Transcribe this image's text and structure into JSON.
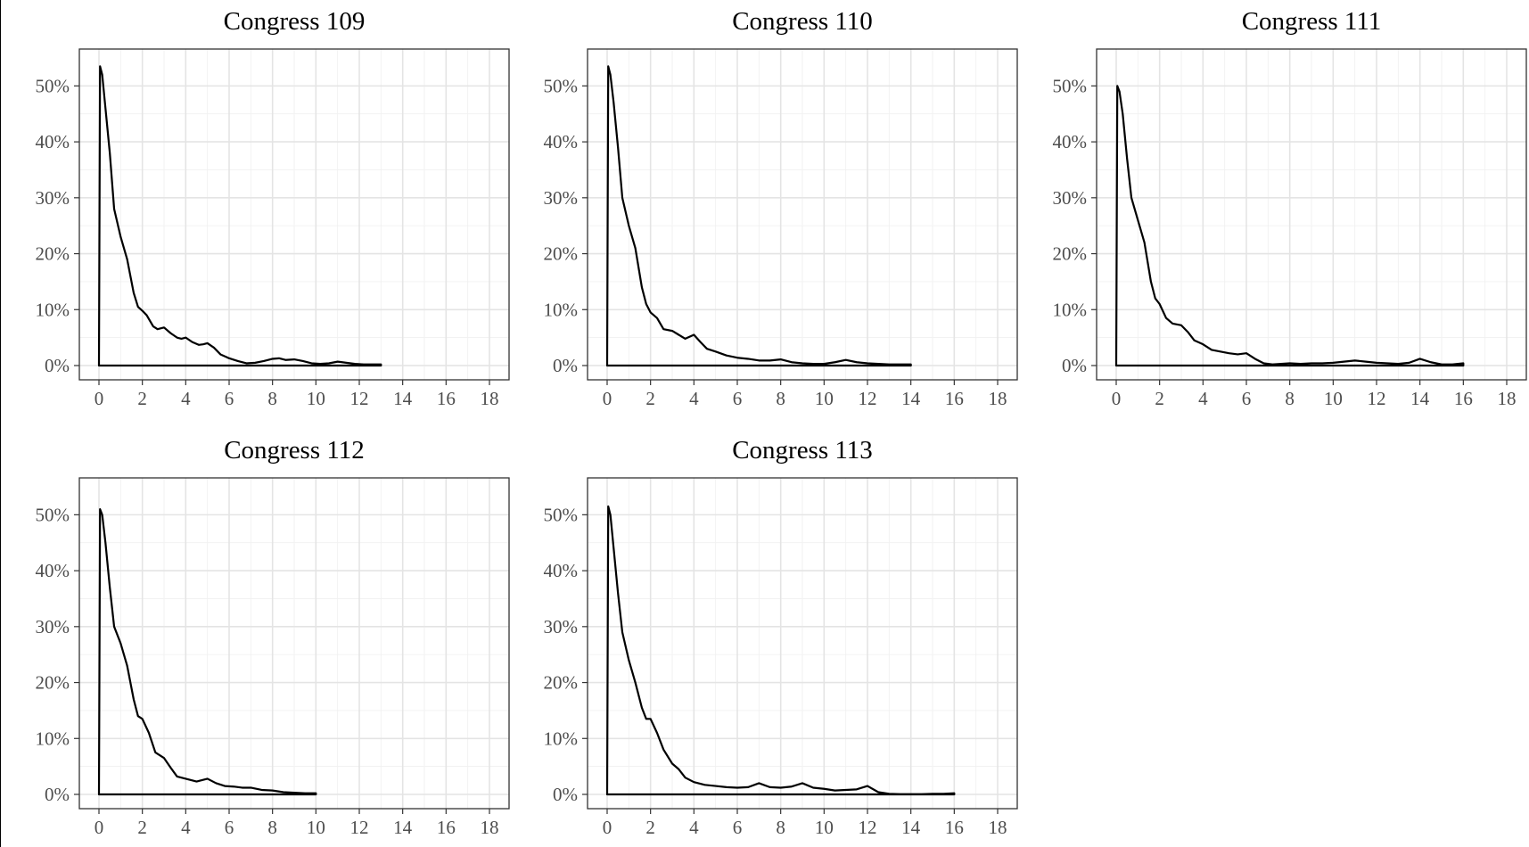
{
  "chart_data": [
    {
      "type": "line",
      "title": "Congress 109",
      "xlim": [
        0,
        18
      ],
      "ylim": [
        0,
        0.55
      ],
      "x_ticks": [
        0,
        2,
        4,
        6,
        8,
        10,
        12,
        14,
        16,
        18
      ],
      "y_ticks": [
        0,
        0.1,
        0.2,
        0.3,
        0.4,
        0.5
      ],
      "y_tick_labels": [
        "0%",
        "10%",
        "20%",
        "30%",
        "40%",
        "50%"
      ],
      "grid": true,
      "series": [
        {
          "x": [
            0,
            0.05,
            0.15,
            0.3,
            0.5,
            0.7,
            1.0,
            1.3,
            1.6,
            1.8,
            2.0,
            2.2,
            2.5,
            2.7,
            3.0,
            3.3,
            3.6,
            3.8,
            4.0,
            4.3,
            4.6,
            4.8,
            5.0,
            5.3,
            5.6,
            6.0,
            6.4,
            6.8,
            7.2,
            7.6,
            8.0,
            8.3,
            8.6,
            9.0,
            9.4,
            9.8,
            10.2,
            10.6,
            11.0,
            11.4,
            11.8,
            12.2,
            12.6,
            13.0
          ],
          "y": [
            0,
            0.535,
            0.52,
            0.46,
            0.38,
            0.28,
            0.23,
            0.19,
            0.13,
            0.105,
            0.098,
            0.09,
            0.07,
            0.065,
            0.068,
            0.058,
            0.05,
            0.048,
            0.05,
            0.042,
            0.037,
            0.038,
            0.04,
            0.032,
            0.02,
            0.013,
            0.008,
            0.004,
            0.005,
            0.008,
            0.012,
            0.013,
            0.01,
            0.011,
            0.008,
            0.004,
            0.003,
            0.004,
            0.007,
            0.005,
            0.003,
            0.002,
            0.002,
            0.002
          ]
        }
      ]
    },
    {
      "type": "line",
      "title": "Congress 110",
      "xlim": [
        0,
        18
      ],
      "ylim": [
        0,
        0.55
      ],
      "x_ticks": [
        0,
        2,
        4,
        6,
        8,
        10,
        12,
        14,
        16,
        18
      ],
      "y_ticks": [
        0,
        0.1,
        0.2,
        0.3,
        0.4,
        0.5
      ],
      "y_tick_labels": [
        "0%",
        "10%",
        "20%",
        "30%",
        "40%",
        "50%"
      ],
      "grid": true,
      "series": [
        {
          "x": [
            0,
            0.05,
            0.15,
            0.3,
            0.5,
            0.7,
            1.0,
            1.3,
            1.6,
            1.8,
            2.0,
            2.3,
            2.6,
            3.0,
            3.3,
            3.6,
            4.0,
            4.3,
            4.6,
            5.0,
            5.5,
            6.0,
            6.5,
            7.0,
            7.5,
            8.0,
            8.5,
            9.0,
            9.5,
            10.0,
            10.5,
            11.0,
            11.5,
            12.0,
            12.5,
            13.0,
            13.5,
            14.0
          ],
          "y": [
            0,
            0.535,
            0.52,
            0.47,
            0.39,
            0.3,
            0.25,
            0.21,
            0.14,
            0.11,
            0.095,
            0.085,
            0.065,
            0.062,
            0.055,
            0.048,
            0.055,
            0.042,
            0.03,
            0.025,
            0.018,
            0.014,
            0.012,
            0.009,
            0.009,
            0.011,
            0.006,
            0.004,
            0.003,
            0.003,
            0.006,
            0.01,
            0.006,
            0.004,
            0.003,
            0.002,
            0.002,
            0.002
          ]
        }
      ]
    },
    {
      "type": "line",
      "title": "Congress 111",
      "xlim": [
        0,
        18
      ],
      "ylim": [
        0,
        0.55
      ],
      "x_ticks": [
        0,
        2,
        4,
        6,
        8,
        10,
        12,
        14,
        16,
        18
      ],
      "y_ticks": [
        0,
        0.1,
        0.2,
        0.3,
        0.4,
        0.5
      ],
      "y_tick_labels": [
        "0%",
        "10%",
        "20%",
        "30%",
        "40%",
        "50%"
      ],
      "grid": true,
      "series": [
        {
          "x": [
            0,
            0.05,
            0.15,
            0.3,
            0.5,
            0.7,
            1.0,
            1.3,
            1.6,
            1.8,
            2.0,
            2.3,
            2.6,
            3.0,
            3.3,
            3.6,
            4.0,
            4.4,
            4.8,
            5.2,
            5.6,
            6.0,
            6.4,
            6.8,
            7.2,
            7.6,
            8.0,
            8.5,
            9.0,
            9.5,
            10.0,
            10.5,
            11.0,
            11.5,
            12.0,
            12.5,
            13.0,
            13.5,
            14.0,
            14.5,
            15.0,
            15.5,
            16.0
          ],
          "y": [
            0,
            0.5,
            0.49,
            0.45,
            0.37,
            0.3,
            0.26,
            0.22,
            0.15,
            0.12,
            0.11,
            0.085,
            0.075,
            0.072,
            0.06,
            0.045,
            0.038,
            0.028,
            0.025,
            0.022,
            0.02,
            0.022,
            0.012,
            0.004,
            0.002,
            0.003,
            0.004,
            0.003,
            0.004,
            0.004,
            0.005,
            0.007,
            0.009,
            0.007,
            0.005,
            0.004,
            0.003,
            0.005,
            0.012,
            0.006,
            0.002,
            0.002,
            0.004
          ]
        }
      ]
    },
    {
      "type": "line",
      "title": "Congress 112",
      "xlim": [
        0,
        18
      ],
      "ylim": [
        0,
        0.55
      ],
      "x_ticks": [
        0,
        2,
        4,
        6,
        8,
        10,
        12,
        14,
        16,
        18
      ],
      "y_ticks": [
        0,
        0.1,
        0.2,
        0.3,
        0.4,
        0.5
      ],
      "y_tick_labels": [
        "0%",
        "10%",
        "20%",
        "30%",
        "40%",
        "50%"
      ],
      "grid": true,
      "series": [
        {
          "x": [
            0,
            0.05,
            0.15,
            0.3,
            0.5,
            0.7,
            1.0,
            1.3,
            1.6,
            1.8,
            2.0,
            2.3,
            2.6,
            3.0,
            3.3,
            3.6,
            4.0,
            4.5,
            5.0,
            5.4,
            5.8,
            6.2,
            6.6,
            7.0,
            7.5,
            8.0,
            8.5,
            9.0,
            9.5,
            10.0
          ],
          "y": [
            0,
            0.51,
            0.5,
            0.45,
            0.37,
            0.3,
            0.27,
            0.23,
            0.17,
            0.14,
            0.135,
            0.11,
            0.075,
            0.065,
            0.048,
            0.032,
            0.028,
            0.023,
            0.028,
            0.02,
            0.015,
            0.014,
            0.012,
            0.012,
            0.008,
            0.007,
            0.004,
            0.003,
            0.002,
            0.002
          ]
        }
      ]
    },
    {
      "type": "line",
      "title": "Congress 113",
      "xlim": [
        0,
        18
      ],
      "ylim": [
        0,
        0.55
      ],
      "x_ticks": [
        0,
        2,
        4,
        6,
        8,
        10,
        12,
        14,
        16,
        18
      ],
      "y_ticks": [
        0,
        0.1,
        0.2,
        0.3,
        0.4,
        0.5
      ],
      "y_tick_labels": [
        "0%",
        "10%",
        "20%",
        "30%",
        "40%",
        "50%"
      ],
      "grid": true,
      "series": [
        {
          "x": [
            0,
            0.05,
            0.15,
            0.3,
            0.5,
            0.7,
            1.0,
            1.3,
            1.6,
            1.8,
            2.0,
            2.3,
            2.6,
            3.0,
            3.3,
            3.6,
            4.0,
            4.5,
            5.0,
            5.5,
            6.0,
            6.5,
            7.0,
            7.5,
            8.0,
            8.5,
            9.0,
            9.5,
            10.0,
            10.5,
            11.0,
            11.5,
            12.0,
            12.5,
            13.0,
            13.5,
            14.0,
            14.5,
            15.0,
            15.5,
            16.0
          ],
          "y": [
            0,
            0.515,
            0.5,
            0.44,
            0.36,
            0.29,
            0.24,
            0.2,
            0.155,
            0.135,
            0.135,
            0.11,
            0.08,
            0.055,
            0.045,
            0.03,
            0.022,
            0.017,
            0.015,
            0.013,
            0.012,
            0.013,
            0.02,
            0.013,
            0.012,
            0.014,
            0.02,
            0.012,
            0.01,
            0.007,
            0.008,
            0.009,
            0.015,
            0.004,
            0.001,
            0.0005,
            0.0005,
            0.0005,
            0.001,
            0.001,
            0.002
          ]
        }
      ]
    }
  ]
}
